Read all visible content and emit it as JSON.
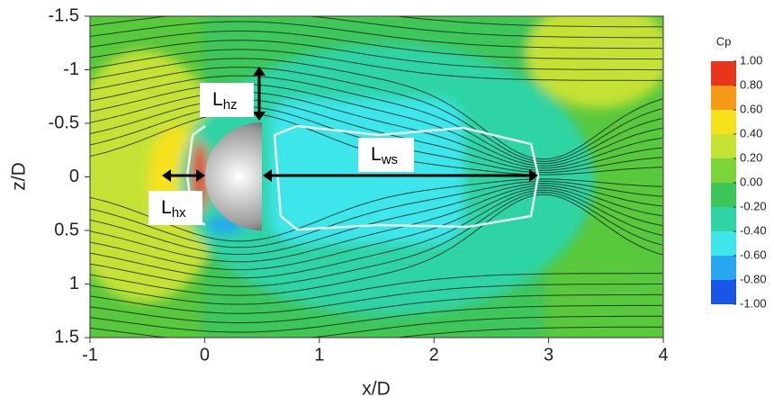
{
  "chart_data": {
    "type": "contour",
    "xlabel": "x/D",
    "ylabel": "z/D",
    "xlim": [
      -1,
      4
    ],
    "ylim": [
      -1.5,
      1.5
    ],
    "xticks": [
      -1,
      0,
      1,
      2,
      3,
      4
    ],
    "yticks": [
      -1.5,
      -1,
      -0.5,
      0,
      0.5,
      1,
      1.5
    ],
    "colorbar": {
      "title": "Cp",
      "ticks": [
        {
          "value": 1,
          "label": "1.00"
        },
        {
          "value": 0.8,
          "label": "0.80"
        },
        {
          "value": 0.6,
          "label": "0.60"
        },
        {
          "value": 0.4,
          "label": "0.40"
        },
        {
          "value": 0.2,
          "label": "0.20"
        },
        {
          "value": 0,
          "label": "0.00"
        },
        {
          "value": -0.2,
          "label": "-0.20"
        },
        {
          "value": -0.4,
          "label": "-0.40"
        },
        {
          "value": -0.6,
          "label": "-0.60"
        },
        {
          "value": -0.8,
          "label": "-0.80"
        },
        {
          "value": -1,
          "label": "-1.00"
        }
      ],
      "colors": [
        "#e8361c",
        "#f59a17",
        "#f5e21a",
        "#c4e234",
        "#7ad43a",
        "#3cc65a",
        "#2ed4a4",
        "#3ce6ea",
        "#28a6f0",
        "#1a56e6"
      ]
    },
    "annotations": [
      {
        "text": "L",
        "sub": "hz"
      },
      {
        "text": "L",
        "sub": "hx"
      },
      {
        "text": "L",
        "sub": "ws"
      }
    ]
  }
}
